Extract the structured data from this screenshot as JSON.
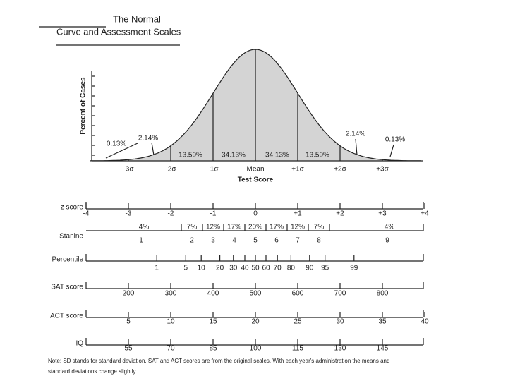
{
  "title_lines": [
    "The Normal",
    "Curve and Assessment Scales"
  ],
  "y_axis_label": "Percent of Cases",
  "x_axis_label": "Test Score",
  "sigma_labels": [
    "-3σ",
    "-2σ",
    "-1σ",
    "Mean",
    "+1σ",
    "+2σ",
    "+3σ"
  ],
  "area_labels": [
    "0.13%",
    "2.14%",
    "13.59%",
    "34.13%",
    "34.13%",
    "13.59%",
    "2.14%",
    "0.13%"
  ],
  "scales": {
    "z_score": {
      "name": "z score",
      "labels": [
        "-4",
        "-3",
        "-2",
        "-1",
        "0",
        "+1",
        "+2",
        "+3",
        "+4"
      ]
    },
    "stanine": {
      "name": "Stanine",
      "percents": [
        "4%",
        "7%",
        "12%",
        "17%",
        "20%",
        "17%",
        "12%",
        "7%",
        "4%"
      ],
      "labels": [
        "1",
        "2",
        "3",
        "4",
        "5",
        "6",
        "7",
        "8",
        "9"
      ]
    },
    "percentile": {
      "name": "Percentile",
      "labels": [
        "1",
        "5",
        "10",
        "20",
        "30",
        "40",
        "50",
        "60",
        "70",
        "80",
        "90",
        "95",
        "99"
      ]
    },
    "sat": {
      "name": "SAT score",
      "labels": [
        "200",
        "300",
        "400",
        "500",
        "600",
        "700",
        "800"
      ]
    },
    "act": {
      "name": "ACT score",
      "labels": [
        "5",
        "10",
        "15",
        "20",
        "25",
        "30",
        "35",
        "40"
      ]
    },
    "iq": {
      "name": "IQ",
      "labels": [
        "55",
        "70",
        "85",
        "100",
        "115",
        "130",
        "145"
      ]
    }
  },
  "note_lines": [
    "Note: SD stands for standard deviation. SAT and ACT scores are from the original scales. With each year's administration the means and",
    "standard deviations change slightly."
  ]
}
